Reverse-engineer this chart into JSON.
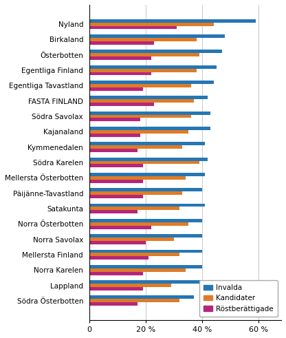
{
  "categories": [
    "Nyland",
    "Birkaland",
    "Österbotten",
    "Egentliga Finland",
    "Egentliga Tavastland",
    "FASTA FINLAND",
    "Södra Savolax",
    "Kajanaland",
    "Kymmenedalen",
    "Södra Karelen",
    "Mellersta Österbotten",
    "Päijänne-Tavastland",
    "Satakunta",
    "Norra Österbotten",
    "Norra Savolax",
    "Mellersta Finland",
    "Norra Karelen",
    "Lappland",
    "Södra Österbotten"
  ],
  "invalda": [
    59,
    48,
    47,
    45,
    44,
    42,
    43,
    43,
    41,
    42,
    41,
    40,
    41,
    40,
    40,
    40,
    40,
    40,
    37
  ],
  "kandidater": [
    44,
    38,
    39,
    38,
    36,
    37,
    36,
    35,
    33,
    39,
    34,
    33,
    32,
    35,
    30,
    32,
    34,
    29,
    32
  ],
  "rostberattigade": [
    31,
    23,
    22,
    22,
    19,
    23,
    18,
    18,
    17,
    19,
    19,
    19,
    17,
    22,
    20,
    21,
    19,
    19,
    17
  ],
  "color_invalda": "#2576B4",
  "color_kandidater": "#E07B25",
  "color_rostberattigade": "#B5267A",
  "xticks": [
    0,
    20,
    40,
    60
  ],
  "xtick_labels": [
    "0",
    "20 %",
    "40 %",
    "60 %"
  ],
  "xlim": [
    0,
    68
  ],
  "legend_labels": [
    "Invalda",
    "Kandidater",
    "Röstberättigade"
  ],
  "grid_color": "#CCCCCC",
  "bar_height": 0.22
}
